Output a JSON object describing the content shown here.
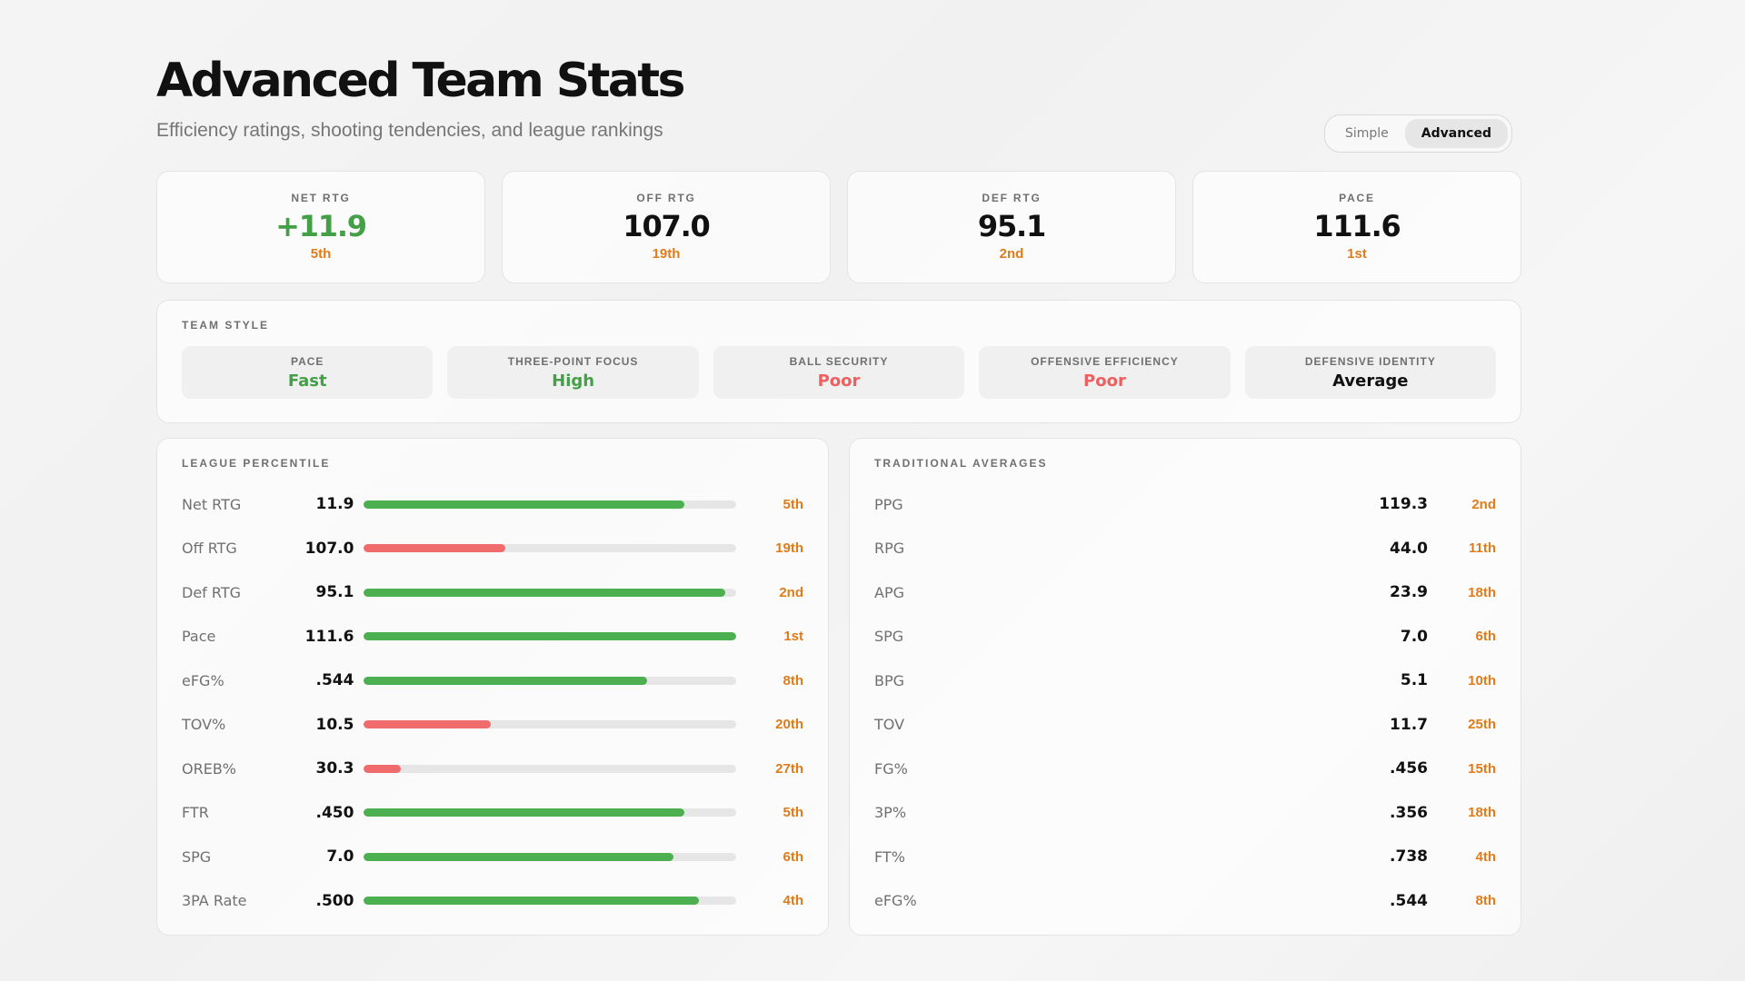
{
  "header": {
    "title": "Advanced Team Stats",
    "subtitle": "Efficiency ratings, shooting tendencies, and league rankings"
  },
  "toggle": {
    "options": [
      "Simple",
      "Advanced"
    ],
    "selected": "Advanced"
  },
  "kpis": [
    {
      "label": "NET RTG",
      "value": "+11.9",
      "rank": "5th",
      "color": "#43a047"
    },
    {
      "label": "OFF RTG",
      "value": "107.0",
      "rank": "19th",
      "color": "#111111"
    },
    {
      "label": "DEF RTG",
      "value": "95.1",
      "rank": "2nd",
      "color": "#111111"
    },
    {
      "label": "PACE",
      "value": "111.6",
      "rank": "1st",
      "color": "#111111"
    }
  ],
  "team_style": {
    "label": "TEAM STYLE",
    "items": [
      {
        "label": "PACE",
        "value": "Fast",
        "color": "#43a047"
      },
      {
        "label": "THREE-POINT FOCUS",
        "value": "High",
        "color": "#43a047"
      },
      {
        "label": "BALL SECURITY",
        "value": "Poor",
        "color": "#ef5f5f"
      },
      {
        "label": "OFFENSIVE EFFICIENCY",
        "value": "Poor",
        "color": "#ef5f5f"
      },
      {
        "label": "DEFENSIVE IDENTITY",
        "value": "Average",
        "color": "#111111"
      }
    ]
  },
  "league_percentile": {
    "label": "LEAGUE PERCENTILE",
    "colors": {
      "good": "#4caf50",
      "bad": "#f06b6b"
    },
    "rows": [
      {
        "label": "Net RTG",
        "value": "11.9",
        "rank": "5th",
        "percentile": 0.86,
        "status": "good"
      },
      {
        "label": "Off RTG",
        "value": "107.0",
        "rank": "19th",
        "percentile": 0.38,
        "status": "bad"
      },
      {
        "label": "Def RTG",
        "value": "95.1",
        "rank": "2nd",
        "percentile": 0.97,
        "status": "good"
      },
      {
        "label": "Pace",
        "value": "111.6",
        "rank": "1st",
        "percentile": 1.0,
        "status": "good"
      },
      {
        "label": "eFG%",
        "value": ".544",
        "rank": "8th",
        "percentile": 0.76,
        "status": "good"
      },
      {
        "label": "TOV%",
        "value": "10.5",
        "rank": "20th",
        "percentile": 0.34,
        "status": "bad"
      },
      {
        "label": "OREB%",
        "value": "30.3",
        "rank": "27th",
        "percentile": 0.1,
        "status": "bad"
      },
      {
        "label": "FTR",
        "value": ".450",
        "rank": "5th",
        "percentile": 0.86,
        "status": "good"
      },
      {
        "label": "SPG",
        "value": "7.0",
        "rank": "6th",
        "percentile": 0.83,
        "status": "good"
      },
      {
        "label": "3PA Rate",
        "value": ".500",
        "rank": "4th",
        "percentile": 0.9,
        "status": "good"
      }
    ]
  },
  "traditional_averages": {
    "label": "TRADITIONAL AVERAGES",
    "rows": [
      {
        "label": "PPG",
        "value": "119.3",
        "rank": "2nd"
      },
      {
        "label": "RPG",
        "value": "44.0",
        "rank": "11th"
      },
      {
        "label": "APG",
        "value": "23.9",
        "rank": "18th"
      },
      {
        "label": "SPG",
        "value": "7.0",
        "rank": "6th"
      },
      {
        "label": "BPG",
        "value": "5.1",
        "rank": "10th"
      },
      {
        "label": "TOV",
        "value": "11.7",
        "rank": "25th"
      },
      {
        "label": "FG%",
        "value": ".456",
        "rank": "15th"
      },
      {
        "label": "3P%",
        "value": ".356",
        "rank": "18th"
      },
      {
        "label": "FT%",
        "value": ".738",
        "rank": "4th"
      },
      {
        "label": "eFG%",
        "value": ".544",
        "rank": "8th"
      }
    ]
  }
}
